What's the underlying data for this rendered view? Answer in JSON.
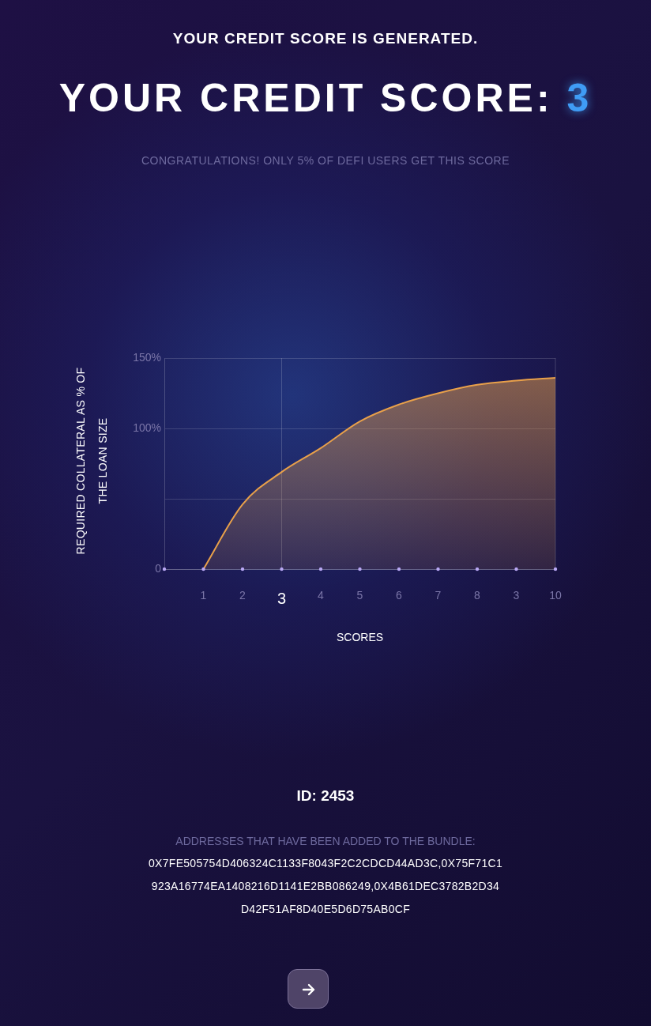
{
  "chart_data": {
    "type": "area",
    "title": "YOUR CREDIT SCORE: 3",
    "subtitle": "CONGRATULATIONS! ONLY 5% OF DEFI USERS GET THIS SCORE",
    "xlabel": "SCORES",
    "ylabel": "REQUIRED COLLATERAL AS % OF THE LOAN SIZE",
    "categories": [
      null,
      "1",
      "2",
      "3",
      "4",
      "5",
      "6",
      "7",
      "8",
      "3",
      "10"
    ],
    "series": [
      {
        "color": "#e8a04a",
        "values": [
          null,
          0,
          46,
          69,
          86,
          105,
          117,
          125,
          131,
          134,
          136
        ]
      }
    ],
    "ylim": [
      0,
      150
    ],
    "yticks": [
      0,
      {
        "value": 50,
        "label": null
      },
      {
        "value": 100,
        "label": "100%"
      },
      {
        "value": 150,
        "label": "150%"
      }
    ],
    "grid": "y",
    "ref_lines": [
      {
        "axis": "x",
        "value": "3"
      }
    ],
    "annotations": [
      "YOUR CREDIT SCORE IS GENERATED.",
      "ID: 2453",
      "ADDRESSES THAT HAVE BEEN ADDED TO THE BUNDLE:",
      "0X7FE505754D406324C1133F8043F2C2CDCD44AD3C,0X75F71C1923A16774EA1408216D1141E2BB086249,0X4B61DEC3782B2D34D42F51AF8D40E5D6D75AB0CF"
    ]
  }
}
